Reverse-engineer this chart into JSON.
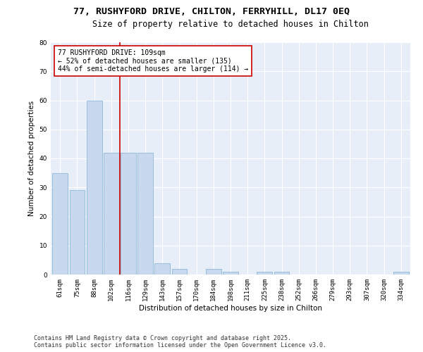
{
  "title1": "77, RUSHYFORD DRIVE, CHILTON, FERRYHILL, DL17 0EQ",
  "title2": "Size of property relative to detached houses in Chilton",
  "xlabel": "Distribution of detached houses by size in Chilton",
  "ylabel": "Number of detached properties",
  "categories": [
    "61sqm",
    "75sqm",
    "88sqm",
    "102sqm",
    "116sqm",
    "129sqm",
    "143sqm",
    "157sqm",
    "170sqm",
    "184sqm",
    "198sqm",
    "211sqm",
    "225sqm",
    "238sqm",
    "252sqm",
    "266sqm",
    "279sqm",
    "293sqm",
    "307sqm",
    "320sqm",
    "334sqm"
  ],
  "values": [
    35,
    29,
    60,
    42,
    42,
    42,
    4,
    2,
    0,
    2,
    1,
    0,
    1,
    1,
    0,
    0,
    0,
    0,
    0,
    0,
    1
  ],
  "bar_color": "#c8d8ed",
  "bar_edge_color": "#7bafd4",
  "vline_x": 3.5,
  "vline_color": "#cc0000",
  "annotation_text": "77 RUSHYFORD DRIVE: 109sqm\n← 52% of detached houses are smaller (135)\n44% of semi-detached houses are larger (114) →",
  "annotation_box_color": "white",
  "annotation_box_edge": "#cc0000",
  "ylim": [
    0,
    80
  ],
  "yticks": [
    0,
    10,
    20,
    30,
    40,
    50,
    60,
    70,
    80
  ],
  "footer": "Contains HM Land Registry data © Crown copyright and database right 2025.\nContains public sector information licensed under the Open Government Licence v3.0.",
  "bg_color": "#ffffff",
  "plot_bg_color": "#e8eef8",
  "title_fontsize": 9.5,
  "subtitle_fontsize": 8.5,
  "axis_label_fontsize": 7.5,
  "tick_fontsize": 6.5,
  "annotation_fontsize": 7,
  "footer_fontsize": 6
}
